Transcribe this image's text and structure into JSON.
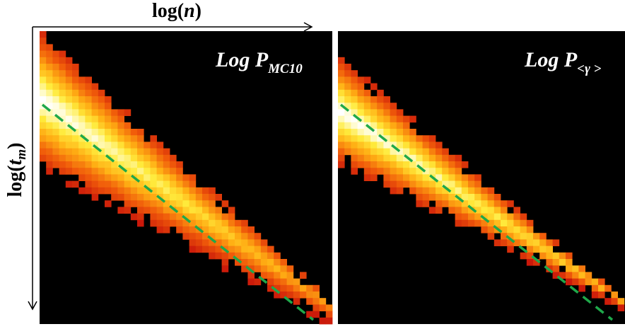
{
  "chart_data": [
    {
      "type": "heatmap",
      "title": "Log P",
      "title_subscript": "MC10",
      "xlabel": "log(n)",
      "ylabel": "log(t_m)",
      "colormap": "hot (black → red → orange → yellow → white)",
      "background": "#000000",
      "reference_line": {
        "style": "dashed",
        "color": "#1fa84a"
      }
    },
    {
      "type": "heatmap",
      "title": "Log P",
      "title_subscript": "<γ >",
      "colormap": "hot (black → red → orange → yellow → white)",
      "background": "#000000",
      "reference_line": {
        "style": "dashed",
        "color": "#1fa84a"
      }
    }
  ],
  "axes": {
    "x_main": "log(",
    "x_var": "n",
    "x_close": ")",
    "y_main": "log(",
    "y_var": "t",
    "y_sub": "m",
    "y_close": ")"
  },
  "titles": {
    "left_main": "Log P",
    "left_sub": "MC10",
    "right_main": "Log P",
    "right_sub": "<γ >"
  }
}
